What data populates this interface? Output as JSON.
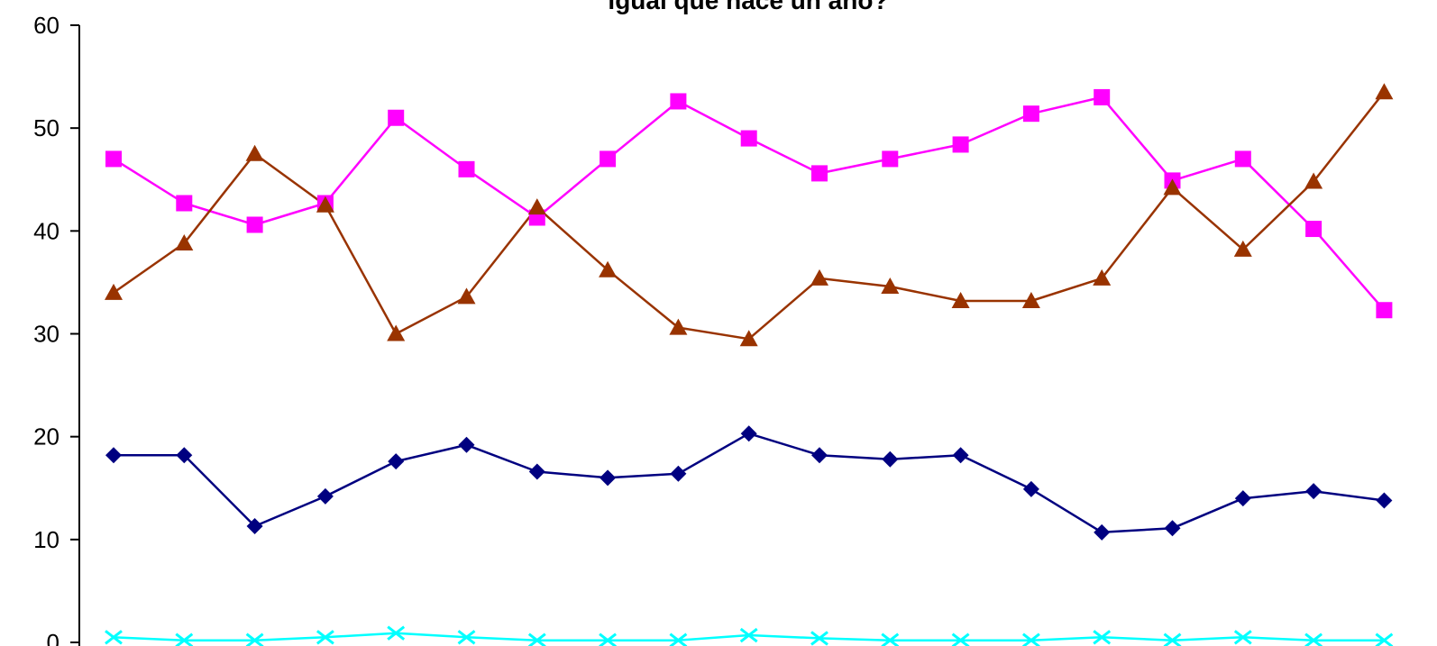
{
  "chart_data": {
    "type": "line",
    "title": "igual que hace un año?",
    "xlabel": "",
    "ylabel": "",
    "ylim": [
      0,
      60
    ],
    "yticks": [
      0,
      10,
      20,
      30,
      40,
      50,
      60
    ],
    "grid": false,
    "x": [
      1,
      2,
      3,
      4,
      5,
      6,
      7,
      8,
      9,
      10,
      11,
      12,
      13,
      14,
      15,
      16,
      17,
      18,
      19
    ],
    "series": [
      {
        "color": "#000080",
        "marker": "diamond",
        "values": [
          18.2,
          18.2,
          11.3,
          14.2,
          17.6,
          19.2,
          16.6,
          16.0,
          16.4,
          20.3,
          18.2,
          17.8,
          18.2,
          14.9,
          10.7,
          11.1,
          14.0,
          14.7,
          13.8
        ]
      },
      {
        "color": "#FF00FF",
        "marker": "square",
        "values": [
          47.0,
          42.7,
          40.6,
          42.7,
          51.0,
          46.0,
          41.3,
          47.0,
          52.6,
          49.0,
          45.6,
          47.0,
          48.4,
          51.4,
          53.0,
          44.9,
          47.0,
          40.2,
          32.3
        ]
      },
      {
        "color": "#993300",
        "marker": "triangle",
        "values": [
          34.0,
          38.8,
          47.5,
          42.5,
          30.0,
          33.6,
          42.3,
          36.2,
          30.6,
          29.5,
          35.4,
          34.6,
          33.2,
          33.2,
          35.4,
          44.2,
          38.2,
          44.8,
          53.5
        ]
      },
      {
        "color": "#00FFFF",
        "marker": "x",
        "values": [
          0.5,
          0.2,
          0.2,
          0.5,
          0.9,
          0.5,
          0.2,
          0.2,
          0.2,
          0.7,
          0.4,
          0.2,
          0.2,
          0.2,
          0.5,
          0.2,
          0.5,
          0.2,
          0.2
        ]
      }
    ]
  }
}
